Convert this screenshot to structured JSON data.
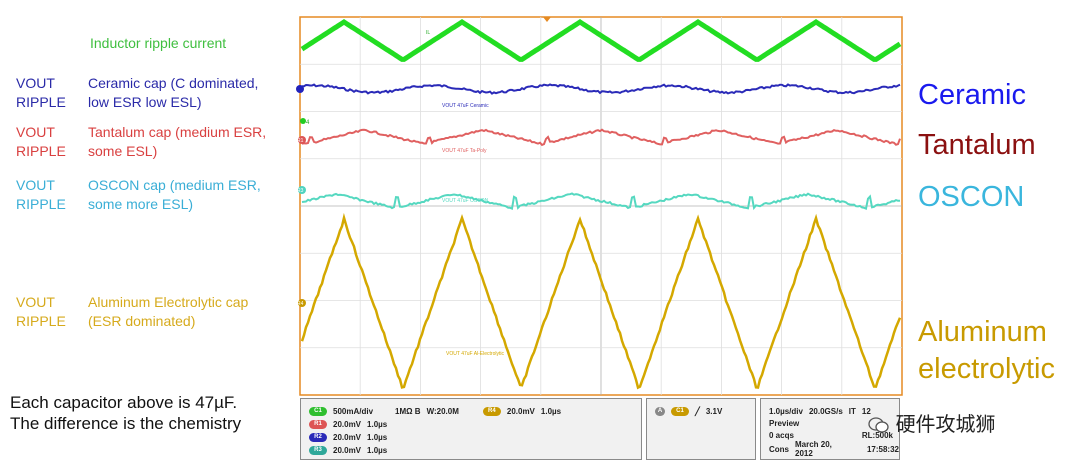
{
  "left_labels": {
    "inductor": "Inductor ripple current",
    "ceramic": {
      "prefix": [
        "VOUT",
        "RIPPLE"
      ],
      "desc": [
        "Ceramic cap (C dominated,",
        "low ESR low ESL)"
      ]
    },
    "tantalum": {
      "prefix": [
        "VOUT",
        "RIPPLE"
      ],
      "desc": [
        "Tantalum cap (medium ESR,",
        "some ESL)"
      ]
    },
    "oscon": {
      "prefix": [
        "VOUT",
        "RIPPLE"
      ],
      "desc": [
        "OSCON cap (medium ESR,",
        "some more ESL)"
      ]
    },
    "aluminum": {
      "prefix": [
        "VOUT",
        "RIPPLE"
      ],
      "desc": [
        "Aluminum Electrolytic cap",
        "(ESR dominated)"
      ]
    }
  },
  "caption": [
    "Each capacitor above is 47µF.",
    "The difference is the chemistry"
  ],
  "right_labels": {
    "ceramic": "Ceramic",
    "tantalum": "Tantalum",
    "oscon": "OSCON",
    "aluminum": [
      "Aluminum",
      "electrolytic"
    ]
  },
  "trace_tags": {
    "ceramic": "VOUT 47uF Ceramic",
    "tantalum": "VOUT 47uF Ta-Poly",
    "oscon": "VOUT 47uF OSCON",
    "aluminum": "VOUT 47uF Al-Electrolytic",
    "inductor": "IL"
  },
  "channel_markers": [
    "4",
    "R1",
    "R3",
    "R4"
  ],
  "status": {
    "ch1": "500mA/div",
    "ch1_imp": "1MΩ B",
    "ch1_bw": "W:20.0M",
    "r4": "20.0mV",
    "r4_t": "1.0µs",
    "r1": "20.0mV",
    "r1_t": "1.0µs",
    "r2": "20.0mV",
    "r2_t": "1.0µs",
    "r3": "20.0mV",
    "r3_t": "1.0µs",
    "trig_ch": "A",
    "trig_val": "3.1V",
    "timebase": "1.0µs/div",
    "rate": "20.0GS/s",
    "mode": "IT",
    "mode_num": "12",
    "preview": "Preview",
    "acqs": "0 acqs",
    "rl": "RL:500k",
    "cons": "Cons",
    "date": "March 20, 2012",
    "time": "17:58:32"
  },
  "watermark": "硬件攻城狮",
  "colors": {
    "inductor": "#22dd22",
    "ceramic": "#2222bb",
    "tantalum": "#dd5555",
    "oscon": "#4fd3bf",
    "aluminum": "#d4a800",
    "ceramic_big": "#1a1aee",
    "tantalum_big": "#8b1010",
    "oscon_big": "#3ab6dd",
    "aluminum_big": "#c89a00",
    "grid": "#c8c8c8",
    "frame": "#e58a22"
  }
}
